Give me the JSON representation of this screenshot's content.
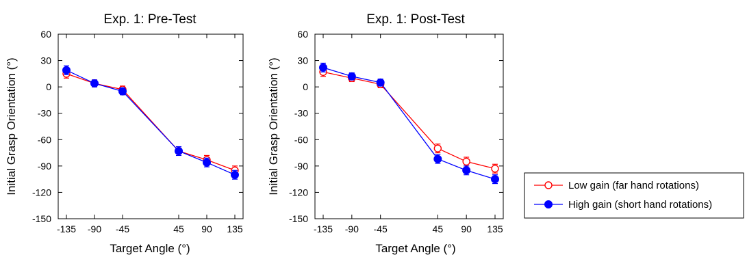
{
  "chart_data": [
    {
      "type": "line",
      "title": "Exp. 1: Pre-Test",
      "xlabel": "Target Angle (°)",
      "ylabel": "Initial Grasp Orientation (°)",
      "x": [
        -135,
        -90,
        -45,
        45,
        90,
        135
      ],
      "x_tick_labels": [
        "-135",
        "-90",
        "-45",
        "45",
        "90",
        "135"
      ],
      "ylim": [
        -150,
        60
      ],
      "y_ticks": [
        -150,
        -120,
        -90,
        -60,
        -30,
        0,
        30,
        60
      ],
      "grid": false,
      "series": [
        {
          "name": "Low gain (far hand rotations)",
          "color": "#ff0000",
          "marker": "open-circle",
          "values": [
            15,
            4,
            -3,
            -73,
            -83,
            -95
          ],
          "errors": [
            5,
            4,
            4,
            5,
            5,
            5
          ]
        },
        {
          "name": "High gain (short hand rotations)",
          "color": "#0000ff",
          "marker": "filled-circle",
          "values": [
            19,
            4,
            -5,
            -73,
            -86,
            -100
          ],
          "errors": [
            5,
            4,
            4,
            5,
            5,
            5
          ]
        }
      ]
    },
    {
      "type": "line",
      "title": "Exp. 1: Post-Test",
      "xlabel": "Target Angle (°)",
      "ylabel": "Initial Grasp Orientation (°)",
      "x": [
        -135,
        -90,
        -45,
        45,
        90,
        135
      ],
      "x_tick_labels": [
        "-135",
        "-90",
        "-45",
        "45",
        "90",
        "135"
      ],
      "ylim": [
        -150,
        60
      ],
      "y_ticks": [
        -150,
        -120,
        -90,
        -60,
        -30,
        0,
        30,
        60
      ],
      "grid": false,
      "series": [
        {
          "name": "Low gain (far hand rotations)",
          "color": "#ff0000",
          "marker": "open-circle",
          "values": [
            17,
            10,
            3,
            -70,
            -85,
            -93
          ],
          "errors": [
            5,
            4,
            4,
            5,
            5,
            5
          ]
        },
        {
          "name": "High gain (short hand rotations)",
          "color": "#0000ff",
          "marker": "filled-circle",
          "values": [
            22,
            12,
            5,
            -82,
            -95,
            -105
          ],
          "errors": [
            5,
            4,
            4,
            5,
            5,
            5
          ]
        }
      ]
    }
  ],
  "legend": {
    "entries": [
      {
        "label": "Low gain (far hand rotations)",
        "color": "#ff0000",
        "marker": "open-circle"
      },
      {
        "label": "High gain (short hand rotations)",
        "color": "#0000ff",
        "marker": "filled-circle"
      }
    ]
  }
}
